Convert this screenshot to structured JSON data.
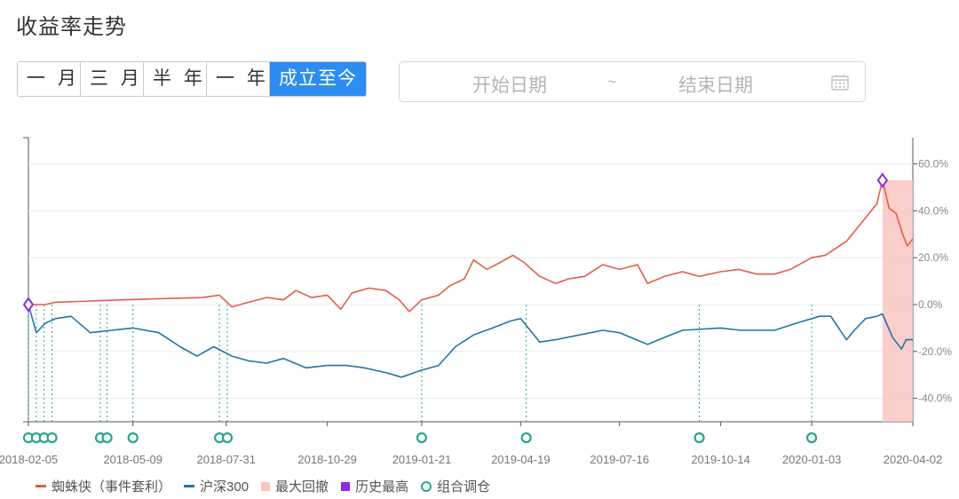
{
  "page": {
    "title": "收益率走势"
  },
  "range_buttons": [
    "一 月",
    "三 月",
    "半 年",
    "一 年",
    "成立至今"
  ],
  "date_picker": {
    "start_placeholder": "开始日期",
    "separator": "~",
    "end_placeholder": "结束日期",
    "icon": "calendar-icon"
  },
  "legend": {
    "fund": "蜘蛛侠（事件套利）",
    "index": "沪深300",
    "max_drawdown": "最大回撤",
    "peak": "历史最高",
    "rebalance": "组合调仓"
  },
  "colors": {
    "fund": "#e35d4c",
    "index": "#1f77a4",
    "drawdown": "#f9c5c1",
    "peak": "#8a2be2",
    "rebalance": "#2aa58a",
    "active_button": "#2d8cf0"
  },
  "chart_data": {
    "type": "line",
    "x_range": [
      "2018-02-05",
      "2020-04-02"
    ],
    "x_ticks": [
      "2018-02-05",
      "2018-05-09",
      "2018-07-31",
      "2018-10-29",
      "2019-01-21",
      "2019-04-19",
      "2019-07-16",
      "2019-10-14",
      "2020-01-03",
      "2020-04-02"
    ],
    "y_ticks": [
      "60.0%",
      "40.0%",
      "20.0%",
      "0.0%",
      "-20.0%",
      "-40.0%"
    ],
    "ylim": [
      -50,
      60
    ],
    "y_unit": "%",
    "series": [
      {
        "name": "蜘蛛侠（事件套利）",
        "points": [
          [
            "2018-02-05",
            0
          ],
          [
            "2018-02-20",
            0
          ],
          [
            "2018-03-01",
            1
          ],
          [
            "2018-04-01",
            1.5
          ],
          [
            "2018-05-01",
            2
          ],
          [
            "2018-06-01",
            2.5
          ],
          [
            "2018-07-10",
            3
          ],
          [
            "2018-07-25",
            4
          ],
          [
            "2018-08-05",
            -1
          ],
          [
            "2018-08-20",
            1
          ],
          [
            "2018-09-05",
            3
          ],
          [
            "2018-09-20",
            2
          ],
          [
            "2018-10-01",
            6
          ],
          [
            "2018-10-15",
            3
          ],
          [
            "2018-10-29",
            4
          ],
          [
            "2018-11-10",
            -2
          ],
          [
            "2018-11-20",
            5
          ],
          [
            "2018-12-05",
            7
          ],
          [
            "2018-12-20",
            6
          ],
          [
            "2019-01-01",
            2
          ],
          [
            "2019-01-10",
            -3
          ],
          [
            "2019-01-21",
            2
          ],
          [
            "2019-02-05",
            4
          ],
          [
            "2019-02-15",
            8
          ],
          [
            "2019-02-28",
            11
          ],
          [
            "2019-03-08",
            19
          ],
          [
            "2019-03-20",
            15
          ],
          [
            "2019-04-01",
            18
          ],
          [
            "2019-04-12",
            21
          ],
          [
            "2019-04-22",
            18
          ],
          [
            "2019-05-06",
            12
          ],
          [
            "2019-05-20",
            9
          ],
          [
            "2019-06-01",
            11
          ],
          [
            "2019-06-15",
            12
          ],
          [
            "2019-07-01",
            17
          ],
          [
            "2019-07-16",
            15
          ],
          [
            "2019-08-01",
            17
          ],
          [
            "2019-08-10",
            9
          ],
          [
            "2019-08-25",
            12
          ],
          [
            "2019-09-10",
            14
          ],
          [
            "2019-09-25",
            12
          ],
          [
            "2019-10-14",
            14
          ],
          [
            "2019-10-30",
            15
          ],
          [
            "2019-11-15",
            13
          ],
          [
            "2019-12-01",
            13
          ],
          [
            "2019-12-15",
            15
          ],
          [
            "2020-01-03",
            20
          ],
          [
            "2020-01-15",
            21
          ],
          [
            "2020-02-03",
            27
          ],
          [
            "2020-02-20",
            37
          ],
          [
            "2020-03-01",
            43
          ],
          [
            "2020-03-06",
            53
          ],
          [
            "2020-03-12",
            41
          ],
          [
            "2020-03-18",
            39
          ],
          [
            "2020-03-24",
            30
          ],
          [
            "2020-03-28",
            25
          ],
          [
            "2020-04-02",
            28
          ]
        ]
      },
      {
        "name": "沪深300",
        "points": [
          [
            "2018-02-05",
            0
          ],
          [
            "2018-02-12",
            -12
          ],
          [
            "2018-02-20",
            -8
          ],
          [
            "2018-03-01",
            -6
          ],
          [
            "2018-03-15",
            -5
          ],
          [
            "2018-04-01",
            -12
          ],
          [
            "2018-04-20",
            -11
          ],
          [
            "2018-05-09",
            -10
          ],
          [
            "2018-06-01",
            -12
          ],
          [
            "2018-06-20",
            -18
          ],
          [
            "2018-07-05",
            -22
          ],
          [
            "2018-07-20",
            -18
          ],
          [
            "2018-08-05",
            -22
          ],
          [
            "2018-08-20",
            -24
          ],
          [
            "2018-09-05",
            -25
          ],
          [
            "2018-09-20",
            -23
          ],
          [
            "2018-10-10",
            -27
          ],
          [
            "2018-10-29",
            -26
          ],
          [
            "2018-11-15",
            -26
          ],
          [
            "2018-12-01",
            -27
          ],
          [
            "2018-12-20",
            -29
          ],
          [
            "2019-01-03",
            -31
          ],
          [
            "2019-01-21",
            -28
          ],
          [
            "2019-02-05",
            -26
          ],
          [
            "2019-02-20",
            -18
          ],
          [
            "2019-03-08",
            -13
          ],
          [
            "2019-03-25",
            -10
          ],
          [
            "2019-04-10",
            -7
          ],
          [
            "2019-04-19",
            -6
          ],
          [
            "2019-05-06",
            -16
          ],
          [
            "2019-05-20",
            -15
          ],
          [
            "2019-06-10",
            -13
          ],
          [
            "2019-07-01",
            -11
          ],
          [
            "2019-07-16",
            -12
          ],
          [
            "2019-08-10",
            -17
          ],
          [
            "2019-08-25",
            -14
          ],
          [
            "2019-09-10",
            -11
          ],
          [
            "2019-10-14",
            -10
          ],
          [
            "2019-11-01",
            -11
          ],
          [
            "2019-12-01",
            -11
          ],
          [
            "2019-12-20",
            -8
          ],
          [
            "2020-01-10",
            -5
          ],
          [
            "2020-01-20",
            -5
          ],
          [
            "2020-02-03",
            -15
          ],
          [
            "2020-02-10",
            -11
          ],
          [
            "2020-02-20",
            -6
          ],
          [
            "2020-03-01",
            -5
          ],
          [
            "2020-03-06",
            -4
          ],
          [
            "2020-03-15",
            -14
          ],
          [
            "2020-03-23",
            -19
          ],
          [
            "2020-03-27",
            -15
          ],
          [
            "2020-04-02",
            -15
          ]
        ]
      }
    ],
    "max_drawdown": {
      "start": "2020-03-06",
      "end": "2020-04-02"
    },
    "historical_high": [
      [
        "2018-02-05",
        0
      ],
      [
        "2020-03-06",
        53
      ]
    ],
    "rebalance_dates": [
      "2018-02-05",
      "2018-02-12",
      "2018-02-19",
      "2018-02-26",
      "2018-04-10",
      "2018-04-16",
      "2018-05-09",
      "2018-07-25",
      "2018-08-01",
      "2019-01-21",
      "2019-04-24",
      "2019-09-25",
      "2020-01-03"
    ]
  }
}
